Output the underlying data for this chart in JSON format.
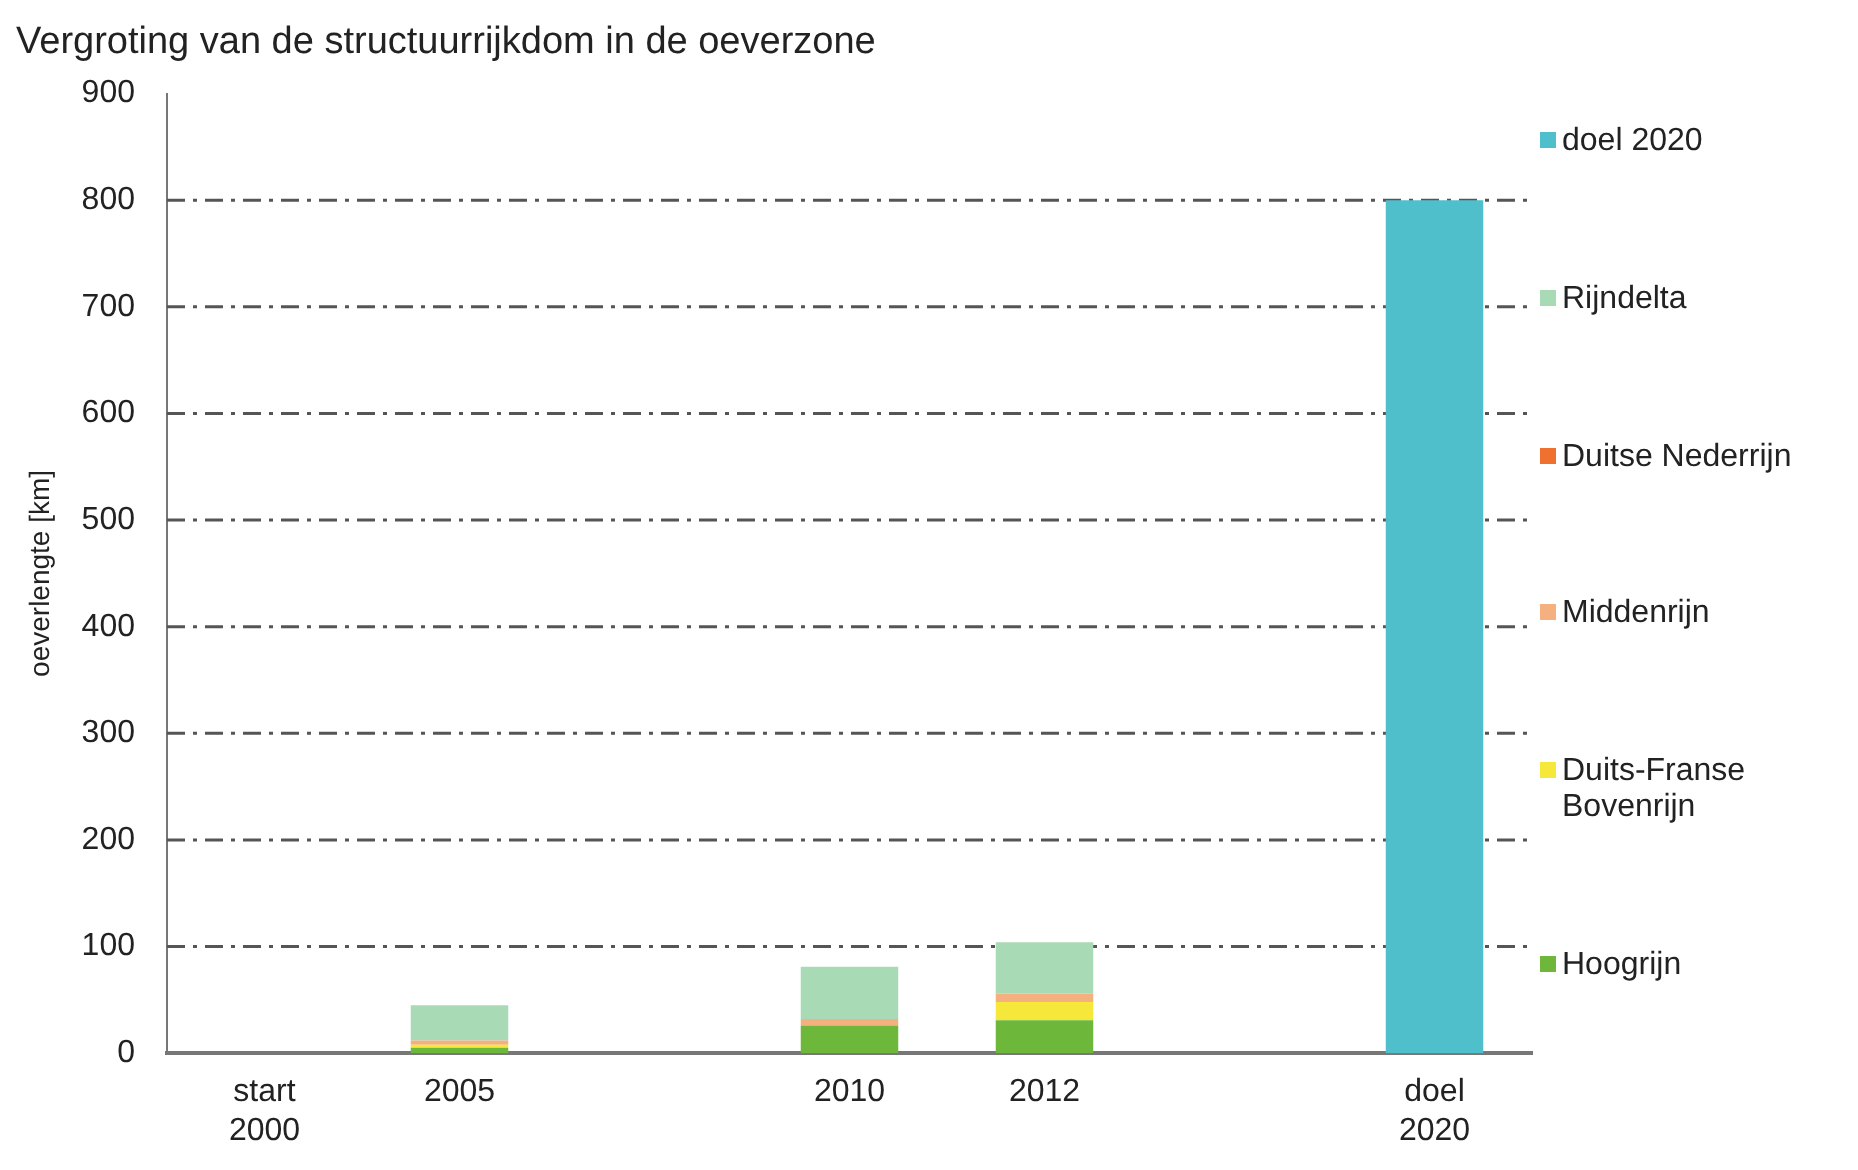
{
  "chart_data": {
    "type": "bar",
    "title": "Vergroting van de structuurrijkdom in de oeverzone",
    "ylabel": "oeverlengte [km]",
    "categories": [
      "start 2000",
      "2005",
      null,
      "2010",
      "2012",
      null,
      "doel 2020"
    ],
    "stacked": true,
    "series": [
      {
        "name": "Hoogrijn",
        "color": "#6db83a",
        "values": [
          0,
          5,
          0,
          26,
          31,
          0,
          0
        ]
      },
      {
        "name": "Duits-Franse Bovenrijn",
        "color": "#f5e83a",
        "values": [
          0,
          3,
          0,
          0,
          17,
          0,
          0
        ]
      },
      {
        "name": "Middenrijn",
        "color": "#f5b080",
        "values": [
          0,
          4,
          0,
          6,
          8,
          0,
          0
        ]
      },
      {
        "name": "Duitse Nederrijn",
        "color": "#f07030",
        "values": [
          0,
          0,
          0,
          0,
          0,
          0,
          0
        ]
      },
      {
        "name": "Rijndelta",
        "color": "#a8dab5",
        "values": [
          0,
          33,
          0,
          49,
          48,
          0,
          0
        ]
      },
      {
        "name": "doel 2020",
        "color": "#4fbfcb",
        "values": [
          0,
          0,
          0,
          0,
          0,
          0,
          800
        ]
      }
    ],
    "ylim": [
      0,
      900
    ],
    "yticks": [
      0,
      100,
      200,
      300,
      400,
      500,
      600,
      700,
      800,
      900
    ],
    "grid": "y",
    "legend": "right"
  }
}
